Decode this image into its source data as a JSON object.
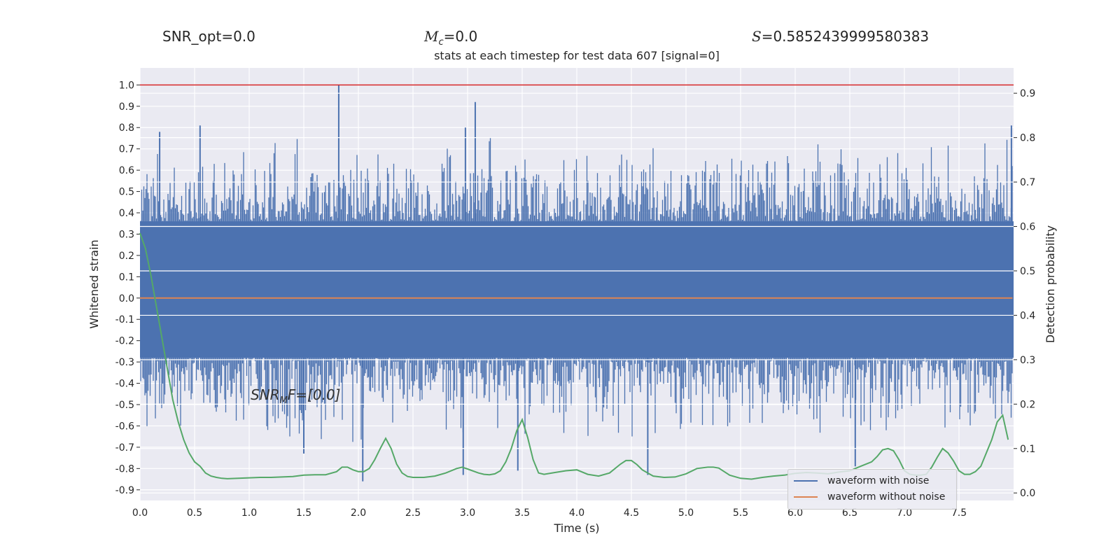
{
  "header": {
    "snr_opt": "SNR_opt=0.0",
    "mc_symbol": "M",
    "mc_sub": "c",
    "mc_value": "=0.0",
    "s_symbol": "S",
    "s_value": "=0.5852439999580383"
  },
  "annotation": {
    "snr_mf": "SNR",
    "snr_mf_sub": "M",
    "snr_mf_rest": "F=[0.0]"
  },
  "chart_data": {
    "type": "line",
    "title": "stats at each timestep for test data 607 [signal=0]",
    "xlabel": "Time (s)",
    "ylabel": "Whitened strain",
    "y2label": "Detection probability",
    "xlim": [
      0,
      8
    ],
    "ylim": [
      -0.95,
      1.08
    ],
    "y2lim": [
      -0.017,
      0.957
    ],
    "x_ticks": [
      "0.0",
      "0.5",
      "1.0",
      "1.5",
      "2.0",
      "2.5",
      "3.0",
      "3.5",
      "4.0",
      "4.5",
      "5.0",
      "5.5",
      "6.0",
      "6.5",
      "7.0",
      "7.5"
    ],
    "y_ticks": [
      "1.0",
      "0.9",
      "0.8",
      "0.7",
      "0.6",
      "0.5",
      "0.4",
      "0.3",
      "0.2",
      "0.1",
      "0.0",
      "-0.1",
      "-0.2",
      "-0.3",
      "-0.4",
      "-0.5",
      "-0.6",
      "-0.7",
      "-0.8",
      "-0.9"
    ],
    "y2_ticks": [
      "0.9",
      "0.8",
      "0.7",
      "0.6",
      "0.5",
      "0.4",
      "0.3",
      "0.2",
      "0.1",
      "0.0"
    ],
    "grid": true,
    "threshold_line": {
      "y": 1.0,
      "color": "#d62728"
    },
    "series": [
      {
        "name": "waveform with noise",
        "color": "#4c72b0",
        "axis": "left",
        "band": [
          -0.28,
          0.36
        ]
      },
      {
        "name": "waveform without noise",
        "color": "#dd8452",
        "axis": "left",
        "x": [
          0,
          7.99
        ],
        "y": [
          0,
          0
        ]
      },
      {
        "color": "#55a868",
        "axis": "right",
        "x": [
          0.0,
          0.05,
          0.1,
          0.15,
          0.2,
          0.25,
          0.3,
          0.35,
          0.4,
          0.45,
          0.5,
          0.55,
          0.6,
          0.65,
          0.7,
          0.75,
          0.8,
          0.9,
          1.0,
          1.1,
          1.2,
          1.3,
          1.4,
          1.5,
          1.6,
          1.7,
          1.8,
          1.85,
          1.9,
          1.95,
          2.0,
          2.05,
          2.1,
          2.15,
          2.2,
          2.25,
          2.3,
          2.35,
          2.4,
          2.45,
          2.5,
          2.6,
          2.7,
          2.8,
          2.9,
          2.95,
          3.0,
          3.1,
          3.15,
          3.2,
          3.25,
          3.3,
          3.35,
          3.4,
          3.45,
          3.5,
          3.55,
          3.6,
          3.65,
          3.7,
          3.8,
          3.9,
          4.0,
          4.1,
          4.2,
          4.3,
          4.4,
          4.45,
          4.5,
          4.55,
          4.6,
          4.65,
          4.7,
          4.8,
          4.9,
          5.0,
          5.1,
          5.2,
          5.25,
          5.3,
          5.4,
          5.5,
          5.6,
          5.7,
          5.8,
          5.9,
          6.0,
          6.1,
          6.2,
          6.3,
          6.4,
          6.5,
          6.6,
          6.7,
          6.75,
          6.8,
          6.85,
          6.9,
          6.95,
          7.0,
          7.05,
          7.1,
          7.15,
          7.2,
          7.25,
          7.3,
          7.35,
          7.4,
          7.45,
          7.5,
          7.55,
          7.6,
          7.65,
          7.7,
          7.75,
          7.8,
          7.85,
          7.9,
          7.95
        ],
        "y": [
          0.585,
          0.55,
          0.49,
          0.42,
          0.35,
          0.28,
          0.21,
          0.16,
          0.12,
          0.09,
          0.07,
          0.06,
          0.045,
          0.038,
          0.035,
          0.033,
          0.032,
          0.033,
          0.034,
          0.035,
          0.035,
          0.036,
          0.037,
          0.04,
          0.041,
          0.041,
          0.048,
          0.058,
          0.058,
          0.052,
          0.048,
          0.048,
          0.055,
          0.075,
          0.1,
          0.123,
          0.1,
          0.065,
          0.045,
          0.037,
          0.035,
          0.035,
          0.038,
          0.045,
          0.055,
          0.058,
          0.054,
          0.045,
          0.042,
          0.041,
          0.043,
          0.05,
          0.07,
          0.1,
          0.14,
          0.165,
          0.125,
          0.075,
          0.045,
          0.042,
          0.046,
          0.05,
          0.052,
          0.042,
          0.038,
          0.045,
          0.065,
          0.073,
          0.073,
          0.064,
          0.052,
          0.045,
          0.038,
          0.035,
          0.036,
          0.043,
          0.055,
          0.058,
          0.058,
          0.056,
          0.04,
          0.033,
          0.031,
          0.035,
          0.038,
          0.04,
          0.044,
          0.046,
          0.045,
          0.043,
          0.047,
          0.05,
          0.06,
          0.07,
          0.082,
          0.097,
          0.1,
          0.095,
          0.075,
          0.05,
          0.042,
          0.04,
          0.04,
          0.042,
          0.058,
          0.08,
          0.1,
          0.09,
          0.072,
          0.05,
          0.042,
          0.042,
          0.048,
          0.06,
          0.09,
          0.12,
          0.16,
          0.175,
          0.12
        ]
      }
    ],
    "legend_position": "lower-right"
  }
}
